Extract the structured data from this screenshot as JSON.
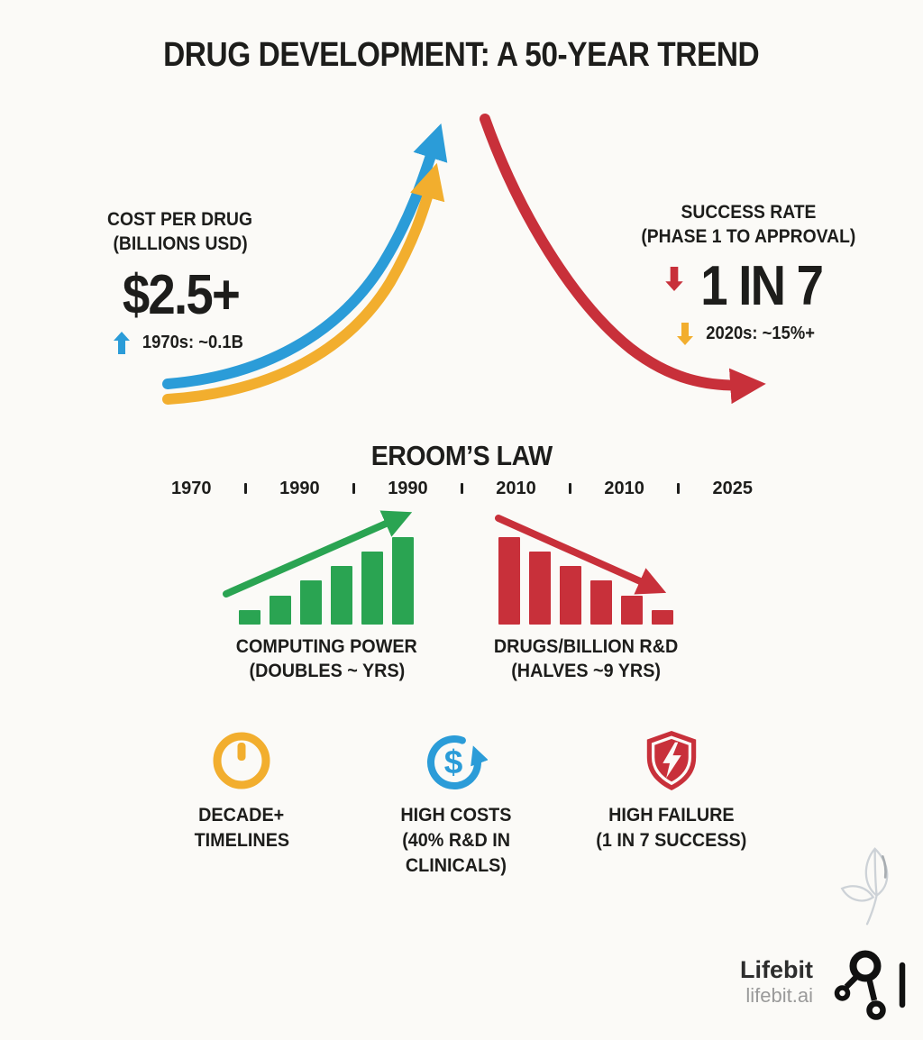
{
  "title": "DRUG DEVELOPMENT: A 50-YEAR TREND",
  "colors": {
    "blue": "#2b9cd8",
    "yellow": "#f2ae2e",
    "red": "#c8303a",
    "green": "#2aa452",
    "ink": "#1d1d1b",
    "background": "#fbfaf7",
    "muted_grey": "#9a9a9a",
    "leaf_grey": "#c6ccd2"
  },
  "cost_stat": {
    "label_line1": "COST PER DRUG",
    "label_line2": "(BILLIONS USD)",
    "value": "$2.5+",
    "note": "1970s: ~0.1B",
    "note_icon": "arrow-up-icon"
  },
  "success_stat": {
    "label_line1": "SUCCESS RATE",
    "label_line2": "(PHASE 1 TO APPROVAL)",
    "value": "1 IN 7",
    "value_icon": "arrow-down-icon",
    "note": "2020s: ~15%+",
    "note_icon": "arrow-down-icon"
  },
  "eroom": {
    "title": "EROOM’S LAW",
    "timeline": [
      "1970",
      "1990",
      "1990",
      "2010",
      "2010",
      "2025"
    ],
    "computing_label_line1": "COMPUTING POWER",
    "computing_label_line2": "(DOUBLES ~ YRS)",
    "drugs_label_line1": "DRUGS/BILLION R&D",
    "drugs_label_line2": "(HALVES ~9 YRS)"
  },
  "chart_data": [
    {
      "id": "cost-per-drug",
      "type": "line",
      "title": "COST PER DRUG (BILLIONS USD)",
      "x_range": [
        "1970s",
        "2020s"
      ],
      "series": [
        {
          "name": "cost-trend-blue",
          "color": "#2b9cd8",
          "shape": "rising S-curve",
          "start_value": 0.1,
          "end_value": 2.5
        },
        {
          "name": "cost-trend-yellow",
          "color": "#f2ae2e",
          "shape": "rising S-curve",
          "start_value": 0.1,
          "end_value": 2.5
        }
      ],
      "annotations": {
        "current": "$2.5+",
        "start": "1970s: ~0.1B"
      }
    },
    {
      "id": "success-rate",
      "type": "line",
      "title": "SUCCESS RATE (PHASE 1 TO APPROVAL)",
      "x_range": [
        "1970s",
        "2020s"
      ],
      "series": [
        {
          "name": "success-trend-red",
          "color": "#c8303a",
          "shape": "falling S-curve"
        }
      ],
      "annotations": {
        "current": "1 IN 7",
        "end": "2020s: ~15%+"
      }
    },
    {
      "id": "computing-power",
      "type": "bar",
      "title": "COMPUTING POWER (DOUBLES ~ YRS)",
      "values": [
        1,
        2,
        3,
        4,
        5,
        6
      ],
      "color": "#2aa452",
      "trend": "increasing",
      "trend_arrow": "up"
    },
    {
      "id": "drugs-per-billion-rd",
      "type": "bar",
      "title": "DRUGS/BILLION R&D (HALVES ~9 YRS)",
      "values": [
        6,
        5,
        4,
        3,
        2,
        1
      ],
      "color": "#c8303a",
      "trend": "decreasing",
      "trend_arrow": "down"
    }
  ],
  "factors": [
    {
      "icon": "clock-icon",
      "color": "#f2ae2e",
      "lines": [
        "DECADE+",
        "TIMELINES"
      ]
    },
    {
      "icon": "dollar-cycle-icon",
      "color": "#2b9cd8",
      "symbol": "$",
      "lines": [
        "HIGH COSTS",
        "(40% R&D IN",
        "CLINICALS)"
      ]
    },
    {
      "icon": "shield-bolt-icon",
      "color": "#c8303a",
      "lines": [
        "HIGH FAILURE",
        "(1 IN 7 SUCCESS)"
      ]
    }
  ],
  "footer": {
    "brand": "Lifebit",
    "domain": "lifebit.ai",
    "logo_icon": "molecule-network-icon",
    "watermark_icon": "leaf-icon"
  }
}
